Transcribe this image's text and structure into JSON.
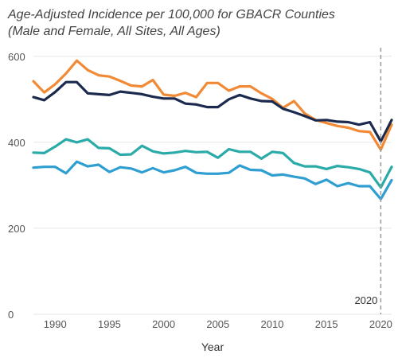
{
  "chart_data": {
    "type": "line",
    "title": "Age-Adjusted Incidence per 100,000 for GBACR Counties",
    "subtitle": "(Male and Female, All Sites, All Ages)",
    "xlabel": "Year",
    "ylabel": "",
    "xlim": [
      1988,
      2021
    ],
    "ylim": [
      0,
      620
    ],
    "x_ticks": [
      1990,
      1995,
      2000,
      2005,
      2010,
      2015,
      2020
    ],
    "y_ticks": [
      0,
      200,
      400,
      600
    ],
    "grid": "horizontal",
    "annotation": {
      "label": "2020",
      "x": 2020,
      "style": "dashed-vertical-line"
    },
    "x": [
      1988,
      1989,
      1990,
      1991,
      1992,
      1993,
      1994,
      1995,
      1996,
      1997,
      1998,
      1999,
      2000,
      2001,
      2002,
      2003,
      2004,
      2005,
      2006,
      2007,
      2008,
      2009,
      2010,
      2011,
      2012,
      2013,
      2014,
      2015,
      2016,
      2017,
      2018,
      2019,
      2020,
      2021
    ],
    "series": [
      {
        "color": "#f28a35",
        "values": [
          542,
          516,
          535,
          560,
          590,
          568,
          556,
          553,
          543,
          532,
          530,
          545,
          511,
          508,
          515,
          505,
          538,
          538,
          520,
          530,
          530,
          514,
          501,
          480,
          496,
          467,
          452,
          445,
          438,
          434,
          426,
          424,
          383,
          441
        ]
      },
      {
        "color": "#1b2a4e",
        "values": [
          505,
          498,
          517,
          540,
          540,
          514,
          512,
          510,
          518,
          515,
          512,
          506,
          502,
          502,
          490,
          488,
          482,
          482,
          500,
          510,
          502,
          496,
          495,
          478,
          470,
          461,
          451,
          452,
          448,
          447,
          441,
          447,
          402,
          452
        ]
      },
      {
        "color": "#2aaaa8",
        "values": [
          376,
          375,
          390,
          407,
          400,
          407,
          387,
          386,
          371,
          372,
          392,
          379,
          374,
          376,
          380,
          377,
          378,
          364,
          384,
          378,
          378,
          362,
          378,
          375,
          352,
          344,
          344,
          338,
          345,
          342,
          338,
          330,
          295,
          343
        ]
      },
      {
        "color": "#2f9fd2",
        "values": [
          341,
          343,
          343,
          328,
          355,
          344,
          348,
          331,
          342,
          339,
          330,
          340,
          330,
          335,
          343,
          329,
          327,
          327,
          329,
          346,
          336,
          335,
          323,
          325,
          320,
          316,
          303,
          313,
          298,
          305,
          298,
          298,
          268,
          312
        ]
      }
    ]
  }
}
